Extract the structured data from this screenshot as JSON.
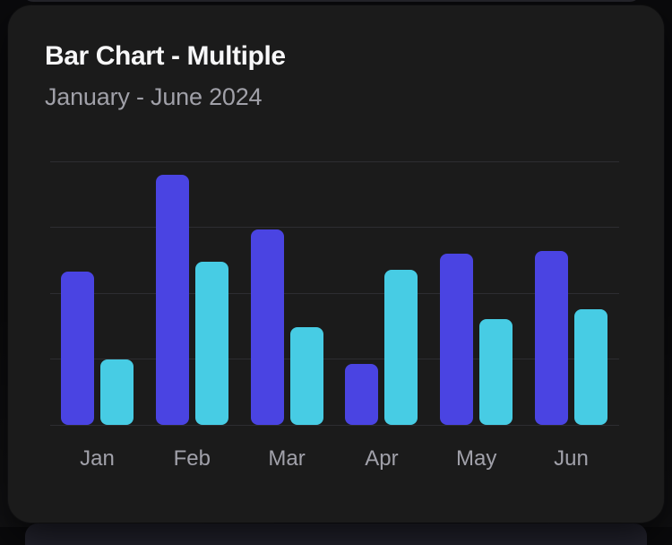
{
  "chart_data": {
    "type": "bar",
    "title": "Bar Chart - Multiple",
    "subtitle": "January - June 2024",
    "categories": [
      "Jan",
      "Feb",
      "Mar",
      "Apr",
      "May",
      "Jun"
    ],
    "series": [
      {
        "color": "#4a44e2",
        "values": [
          58,
          95,
          74,
          23,
          65,
          66
        ]
      },
      {
        "color": "#47cce4",
        "values": [
          25,
          62,
          37,
          59,
          40,
          44
        ]
      }
    ],
    "xlabel": "",
    "ylabel": "",
    "ylim": [
      0,
      100
    ],
    "gridline_values": [
      0,
      25,
      50,
      75,
      100
    ],
    "grid": true,
    "legend": false,
    "y_tick_labels_visible": false,
    "background_color": "#1b1b1b",
    "gridline_color": "#2d2d31",
    "label_color": "#a1a1aa"
  }
}
